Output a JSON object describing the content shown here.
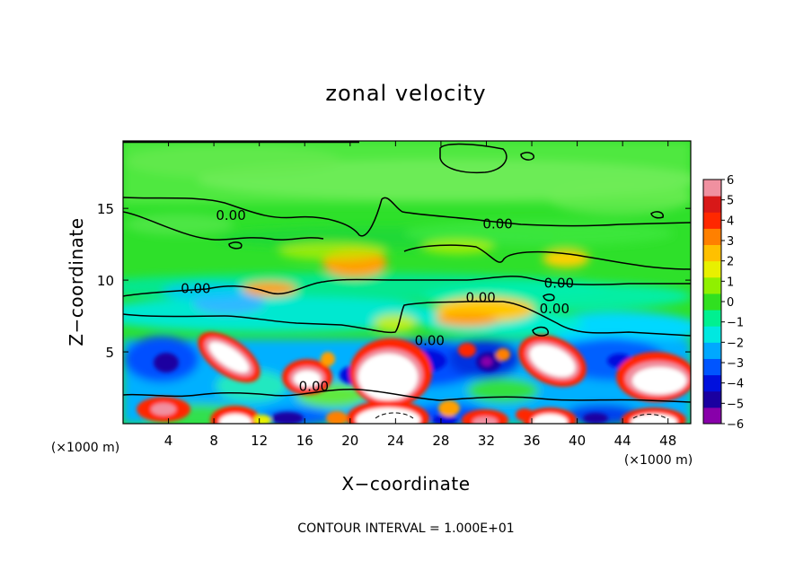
{
  "chart_data": {
    "type": "heatmap",
    "title": "zonal velocity",
    "xlabel": "X−coordinate",
    "ylabel": "Z−coordinate",
    "x_unit": "(×1000 m)",
    "y_unit": "(×1000 m)",
    "footer": "CONTOUR INTERVAL = 1.000E+01",
    "xlim": [
      0,
      50
    ],
    "ylim": [
      0,
      19.7
    ],
    "x_ticks": [
      4,
      8,
      12,
      16,
      20,
      24,
      28,
      32,
      36,
      40,
      44,
      48
    ],
    "y_ticks": [
      5,
      10,
      15
    ],
    "colorbar": {
      "min": -6,
      "max": 6,
      "ticks": [
        "6",
        "5",
        "4",
        "3",
        "2",
        "1",
        "0",
        "−1",
        "−2",
        "−3",
        "−4",
        "−5",
        "−6"
      ],
      "colors": [
        "#8800aa",
        "#1a00a0",
        "#0010dd",
        "#0055ff",
        "#00a8ff",
        "#00e8e0",
        "#00f090",
        "#30e020",
        "#90f000",
        "#e8f000",
        "#ffc000",
        "#ff8000",
        "#ff2800",
        "#d81818",
        "#f090a0"
      ]
    },
    "contour_labels": [
      {
        "text": "0.00",
        "x": 9.5,
        "y": 14.5
      },
      {
        "text": "0.00",
        "x": 33.0,
        "y": 13.9
      },
      {
        "text": "0.00",
        "x": 6.4,
        "y": 9.4
      },
      {
        "text": "0.00",
        "x": 31.5,
        "y": 8.8
      },
      {
        "text": "0.00",
        "x": 38.4,
        "y": 9.8
      },
      {
        "text": "0.00",
        "x": 38.0,
        "y": 8.0
      },
      {
        "text": "0.00",
        "x": 27.0,
        "y": 5.8
      },
      {
        "text": "0.00",
        "x": 16.8,
        "y": 2.6
      }
    ],
    "field_features": [
      {
        "x": 3.8,
        "y": 4.3,
        "value": -5.5
      },
      {
        "x": 9.2,
        "y": 4.7,
        "value": 6
      },
      {
        "x": 16.2,
        "y": 3.4,
        "value": 6
      },
      {
        "x": 20.0,
        "y": 3.8,
        "value": -4
      },
      {
        "x": 23.8,
        "y": 3.9,
        "value": 6
      },
      {
        "x": 30.0,
        "y": 4.5,
        "value": -5
      },
      {
        "x": 31.7,
        "y": 4.2,
        "value": -6
      },
      {
        "x": 38.3,
        "y": 4.6,
        "value": 6
      },
      {
        "x": 46.0,
        "y": 3.3,
        "value": 6
      },
      {
        "x": 3.5,
        "y": 1.0,
        "value": 4
      },
      {
        "x": 9.0,
        "y": 0.8,
        "value": 6
      },
      {
        "x": 23.5,
        "y": 1.0,
        "value": 6
      },
      {
        "x": 32.0,
        "y": 0.8,
        "value": 5
      },
      {
        "x": 37.5,
        "y": 0.8,
        "value": 6
      },
      {
        "x": 46.0,
        "y": 0.7,
        "value": 6
      },
      {
        "x": 13.0,
        "y": 1.0,
        "value": -5
      },
      {
        "x": 28.0,
        "y": 1.5,
        "value": -4
      },
      {
        "x": 42.0,
        "y": 1.2,
        "value": -5
      },
      {
        "x": 21.0,
        "y": 11.2,
        "value": 3.5
      },
      {
        "x": 11.8,
        "y": 9.5,
        "value": 2.5
      },
      {
        "x": 31.0,
        "y": 7.5,
        "value": 2.5
      },
      {
        "x": 39.0,
        "y": 11.6,
        "value": 2
      },
      {
        "x": 12.0,
        "y": 7.5,
        "value": -1.5
      },
      {
        "x": 44.0,
        "y": 7.2,
        "value": -1.2
      },
      {
        "x": 19.0,
        "y": 7.0,
        "value": -1
      },
      {
        "x": 25.0,
        "y": 16.0,
        "value": 0
      },
      {
        "x": 40.0,
        "y": 14.8,
        "value": 0.3
      }
    ]
  }
}
